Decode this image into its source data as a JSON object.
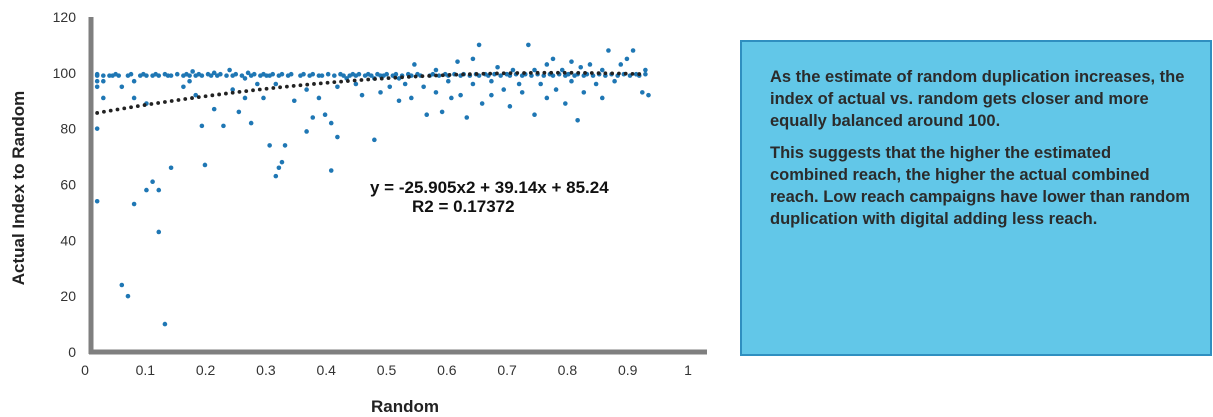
{
  "chart_data": {
    "type": "scatter",
    "title": "",
    "xlabel": "Random",
    "ylabel": "Actual Index to Random",
    "xlim": [
      0,
      1
    ],
    "ylim": [
      0,
      120
    ],
    "x_ticks": [
      "0",
      "0.1",
      "0.2",
      "0.3",
      "0.4",
      "0.5",
      "0.6",
      "0.7",
      "0.8",
      "0.9",
      "1"
    ],
    "y_ticks": [
      "0",
      "20",
      "40",
      "60",
      "80",
      "100",
      "120"
    ],
    "grid": false,
    "legend": "none",
    "point_color": "#1f77b4",
    "trendline_color": "#222222",
    "trendline": {
      "type": "polynomial",
      "order": 2,
      "equation": "y = -25.905x2  + 39.14x + 85.24",
      "r2": "R2 = 0.17372",
      "coefficients": [
        -25.905,
        39.14,
        85.24
      ],
      "x_range": [
        0.01,
        0.9
      ]
    },
    "points": [
      [
        0.01,
        99
      ],
      [
        0.01,
        97
      ],
      [
        0.01,
        95
      ],
      [
        0.01,
        54
      ],
      [
        0.01,
        80
      ],
      [
        0.01,
        99.5
      ],
      [
        0.02,
        99
      ],
      [
        0.02,
        97
      ],
      [
        0.02,
        91
      ],
      [
        0.03,
        99
      ],
      [
        0.035,
        99
      ],
      [
        0.04,
        99.5
      ],
      [
        0.045,
        99
      ],
      [
        0.05,
        95
      ],
      [
        0.05,
        24
      ],
      [
        0.06,
        20
      ],
      [
        0.06,
        99
      ],
      [
        0.065,
        99.5
      ],
      [
        0.07,
        97
      ],
      [
        0.07,
        91
      ],
      [
        0.07,
        53
      ],
      [
        0.08,
        99
      ],
      [
        0.085,
        99.5
      ],
      [
        0.09,
        99
      ],
      [
        0.09,
        89
      ],
      [
        0.09,
        58
      ],
      [
        0.1,
        61
      ],
      [
        0.1,
        99
      ],
      [
        0.105,
        99.5
      ],
      [
        0.11,
        99
      ],
      [
        0.11,
        43
      ],
      [
        0.11,
        58
      ],
      [
        0.12,
        99.5
      ],
      [
        0.12,
        10
      ],
      [
        0.125,
        99
      ],
      [
        0.13,
        66
      ],
      [
        0.13,
        99
      ],
      [
        0.14,
        99.5
      ],
      [
        0.15,
        99
      ],
      [
        0.15,
        95
      ],
      [
        0.155,
        99.5
      ],
      [
        0.16,
        99
      ],
      [
        0.16,
        97
      ],
      [
        0.165,
        100.5
      ],
      [
        0.17,
        99
      ],
      [
        0.17,
        92
      ],
      [
        0.175,
        99.5
      ],
      [
        0.18,
        81
      ],
      [
        0.18,
        99
      ],
      [
        0.185,
        67
      ],
      [
        0.19,
        99.5
      ],
      [
        0.195,
        99
      ],
      [
        0.2,
        87
      ],
      [
        0.2,
        100
      ],
      [
        0.205,
        99
      ],
      [
        0.21,
        99.5
      ],
      [
        0.215,
        81
      ],
      [
        0.22,
        99
      ],
      [
        0.225,
        101
      ],
      [
        0.23,
        99
      ],
      [
        0.23,
        94
      ],
      [
        0.235,
        99.5
      ],
      [
        0.24,
        86
      ],
      [
        0.245,
        99
      ],
      [
        0.25,
        98
      ],
      [
        0.25,
        91
      ],
      [
        0.255,
        100
      ],
      [
        0.26,
        99
      ],
      [
        0.26,
        82
      ],
      [
        0.265,
        99.5
      ],
      [
        0.27,
        96
      ],
      [
        0.275,
        99
      ],
      [
        0.28,
        99.5
      ],
      [
        0.28,
        91
      ],
      [
        0.285,
        99
      ],
      [
        0.29,
        74
      ],
      [
        0.29,
        99
      ],
      [
        0.295,
        99.5
      ],
      [
        0.3,
        63
      ],
      [
        0.3,
        96
      ],
      [
        0.305,
        66
      ],
      [
        0.305,
        99
      ],
      [
        0.31,
        68
      ],
      [
        0.31,
        99.5
      ],
      [
        0.315,
        74
      ],
      [
        0.32,
        99
      ],
      [
        0.325,
        99.5
      ],
      [
        0.33,
        90
      ],
      [
        0.34,
        99
      ],
      [
        0.345,
        99.5
      ],
      [
        0.35,
        79
      ],
      [
        0.35,
        94
      ],
      [
        0.355,
        99
      ],
      [
        0.36,
        84
      ],
      [
        0.36,
        99.5
      ],
      [
        0.37,
        99
      ],
      [
        0.37,
        91
      ],
      [
        0.375,
        99
      ],
      [
        0.38,
        85
      ],
      [
        0.385,
        99.5
      ],
      [
        0.39,
        82
      ],
      [
        0.39,
        65
      ],
      [
        0.395,
        99
      ],
      [
        0.4,
        77
      ],
      [
        0.4,
        95
      ],
      [
        0.405,
        99.5
      ],
      [
        0.41,
        99
      ],
      [
        0.415,
        98
      ],
      [
        0.42,
        99
      ],
      [
        0.425,
        99.5
      ],
      [
        0.43,
        99
      ],
      [
        0.43,
        96
      ],
      [
        0.435,
        99.5
      ],
      [
        0.44,
        92
      ],
      [
        0.445,
        99
      ],
      [
        0.45,
        99.5
      ],
      [
        0.455,
        99
      ],
      [
        0.46,
        98
      ],
      [
        0.46,
        76
      ],
      [
        0.465,
        99.5
      ],
      [
        0.47,
        99
      ],
      [
        0.47,
        93
      ],
      [
        0.475,
        99
      ],
      [
        0.48,
        99.5
      ],
      [
        0.485,
        95
      ],
      [
        0.49,
        99
      ],
      [
        0.495,
        99.5
      ],
      [
        0.5,
        98
      ],
      [
        0.5,
        90
      ],
      [
        0.505,
        99
      ],
      [
        0.51,
        96
      ],
      [
        0.515,
        99.5
      ],
      [
        0.52,
        99
      ],
      [
        0.52,
        91
      ],
      [
        0.525,
        103
      ],
      [
        0.53,
        99.5
      ],
      [
        0.535,
        99
      ],
      [
        0.54,
        95
      ],
      [
        0.545,
        85
      ],
      [
        0.55,
        99
      ],
      [
        0.555,
        99.5
      ],
      [
        0.56,
        101
      ],
      [
        0.56,
        93
      ],
      [
        0.565,
        99
      ],
      [
        0.57,
        86
      ],
      [
        0.575,
        99.5
      ],
      [
        0.58,
        99
      ],
      [
        0.58,
        97
      ],
      [
        0.585,
        91
      ],
      [
        0.59,
        99.5
      ],
      [
        0.595,
        104
      ],
      [
        0.6,
        99
      ],
      [
        0.6,
        92
      ],
      [
        0.605,
        99.5
      ],
      [
        0.61,
        84
      ],
      [
        0.615,
        99
      ],
      [
        0.62,
        105
      ],
      [
        0.62,
        96
      ],
      [
        0.625,
        99.5
      ],
      [
        0.63,
        99
      ],
      [
        0.63,
        110
      ],
      [
        0.635,
        89
      ],
      [
        0.64,
        99.5
      ],
      [
        0.645,
        99
      ],
      [
        0.65,
        97
      ],
      [
        0.65,
        92
      ],
      [
        0.655,
        99.5
      ],
      [
        0.66,
        102
      ],
      [
        0.665,
        99
      ],
      [
        0.67,
        94
      ],
      [
        0.675,
        99.5
      ],
      [
        0.68,
        99
      ],
      [
        0.68,
        88
      ],
      [
        0.685,
        101
      ],
      [
        0.69,
        99.5
      ],
      [
        0.695,
        96
      ],
      [
        0.7,
        99
      ],
      [
        0.7,
        93
      ],
      [
        0.705,
        99.5
      ],
      [
        0.71,
        110
      ],
      [
        0.715,
        99
      ],
      [
        0.72,
        85
      ],
      [
        0.72,
        101
      ],
      [
        0.725,
        99.5
      ],
      [
        0.73,
        96
      ],
      [
        0.735,
        99
      ],
      [
        0.74,
        103
      ],
      [
        0.74,
        91
      ],
      [
        0.745,
        99.5
      ],
      [
        0.75,
        99
      ],
      [
        0.75,
        105
      ],
      [
        0.755,
        94
      ],
      [
        0.76,
        99.5
      ],
      [
        0.765,
        101
      ],
      [
        0.77,
        99
      ],
      [
        0.77,
        89
      ],
      [
        0.775,
        99.5
      ],
      [
        0.78,
        104
      ],
      [
        0.78,
        97
      ],
      [
        0.785,
        99
      ],
      [
        0.79,
        83
      ],
      [
        0.79,
        99.5
      ],
      [
        0.795,
        102
      ],
      [
        0.8,
        99
      ],
      [
        0.8,
        93
      ],
      [
        0.805,
        99.5
      ],
      [
        0.81,
        103
      ],
      [
        0.815,
        99
      ],
      [
        0.82,
        96
      ],
      [
        0.825,
        99.5
      ],
      [
        0.83,
        101
      ],
      [
        0.83,
        91
      ],
      [
        0.835,
        99
      ],
      [
        0.84,
        108
      ],
      [
        0.845,
        99.5
      ],
      [
        0.85,
        97
      ],
      [
        0.855,
        99
      ],
      [
        0.86,
        103
      ],
      [
        0.865,
        99.5
      ],
      [
        0.87,
        105
      ],
      [
        0.875,
        99
      ],
      [
        0.88,
        108
      ],
      [
        0.885,
        99.5
      ],
      [
        0.89,
        99
      ],
      [
        0.895,
        93
      ],
      [
        0.9,
        99.5
      ],
      [
        0.9,
        101
      ],
      [
        0.905,
        92
      ]
    ]
  },
  "callout": {
    "paragraph_1": "As the estimate of random duplication increases, the index of actual vs. random gets closer and more equally balanced around 100.",
    "paragraph_2": "This suggests that the higher the estimated combined reach, the higher the actual combined reach.  Low reach campaigns have lower than random duplication with digital adding less reach.",
    "background_color": "#62c7e8",
    "border_color": "#2f8fc0"
  }
}
